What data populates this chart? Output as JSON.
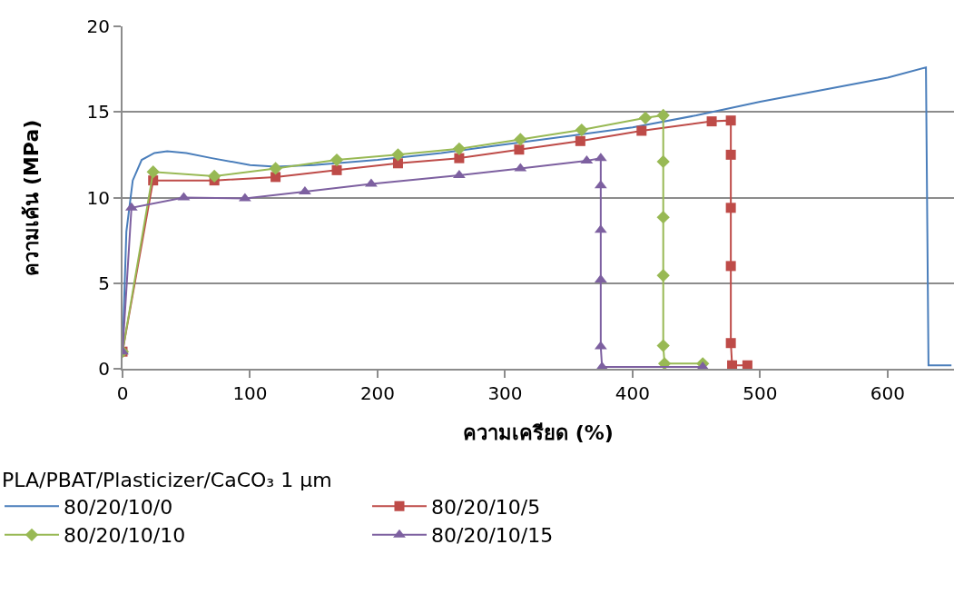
{
  "chart_data": {
    "type": "line",
    "xlabel": "ความเครียด (%)",
    "ylabel": "ความเค้น (MPa)",
    "legend_title": "PLA/PBAT/Plasticizer/CaCO₃ 1 µm",
    "xlim": [
      0,
      652
    ],
    "xticks": [
      0,
      100,
      200,
      300,
      400,
      500,
      600
    ],
    "ylim": [
      0,
      20
    ],
    "yticks": [
      0,
      5,
      10,
      15,
      20
    ],
    "grid": "y",
    "legend": "bottom",
    "line_style": "solid",
    "series": [
      {
        "name": "80/20/10/0",
        "color": "#4a7ebb",
        "marker": "none",
        "x": [
          0,
          3,
          8,
          15,
          25,
          35,
          50,
          70,
          100,
          120,
          150,
          200,
          250,
          300,
          350,
          400,
          450,
          500,
          550,
          600,
          630,
          632,
          650
        ],
        "values": [
          1,
          8,
          11,
          12.2,
          12.6,
          12.7,
          12.6,
          12.3,
          11.9,
          11.8,
          11.9,
          12.2,
          12.6,
          13.1,
          13.6,
          14.1,
          14.8,
          15.6,
          16.3,
          17.0,
          17.6,
          0.2,
          0.2
        ]
      },
      {
        "name": "80/20/10/5",
        "color": "#be4b48",
        "marker": "square",
        "x": [
          0,
          24,
          72,
          120,
          168,
          216,
          264,
          311,
          359,
          407,
          462,
          477,
          477,
          477,
          477,
          477,
          478,
          490
        ],
        "values": [
          1,
          11.0,
          11.0,
          11.2,
          11.6,
          12.0,
          12.3,
          12.8,
          13.3,
          13.9,
          14.45,
          14.5,
          12.5,
          9.4,
          6.0,
          1.5,
          0.2,
          0.2
        ]
      },
      {
        "name": "80/20/10/10",
        "color": "#98b954",
        "marker": "diamond",
        "x": [
          0,
          24,
          72,
          120,
          168,
          216,
          264,
          312,
          360,
          410,
          424,
          424,
          424,
          424,
          424,
          425,
          455
        ],
        "values": [
          1,
          11.5,
          11.25,
          11.7,
          12.2,
          12.5,
          12.85,
          13.4,
          13.95,
          14.65,
          14.8,
          12.1,
          8.85,
          5.45,
          1.35,
          0.3,
          0.3
        ]
      },
      {
        "name": "80/20/10/15",
        "color": "#7d60a0",
        "marker": "triangle",
        "x": [
          0,
          7,
          48,
          96,
          143,
          195,
          264,
          312,
          364,
          375,
          375,
          375,
          375,
          375,
          376,
          455
        ],
        "values": [
          1,
          9.4,
          10.0,
          9.95,
          10.35,
          10.8,
          11.3,
          11.7,
          12.15,
          12.3,
          10.7,
          8.1,
          5.2,
          1.3,
          0.1,
          0.1
        ]
      }
    ]
  }
}
